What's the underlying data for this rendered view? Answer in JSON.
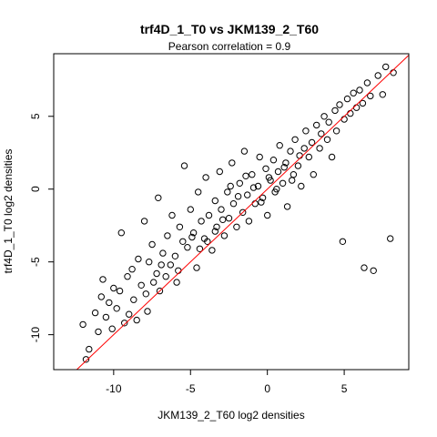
{
  "chart_data": {
    "type": "scatter",
    "title": "trf4D_1_T0 vs JKM139_2_T60",
    "subtitle": "Pearson correlation =  0.9",
    "xlabel": "JKM139_2_T60 log2 densities",
    "ylabel": "trf4D_1_T0 log2 densities",
    "xlim": [
      -13.9,
      9.2
    ],
    "ylim": [
      -12.4,
      9.3
    ],
    "xticks": [
      -10,
      -5,
      0,
      5
    ],
    "yticks": [
      -10,
      -5,
      0,
      5
    ],
    "xtick_labels": [
      "-10",
      "-5",
      "0",
      "5"
    ],
    "ytick_labels": [
      "-10",
      "-5",
      "0",
      "5"
    ],
    "grid": false,
    "legend": "none",
    "point_color": "#000000",
    "fit_line": {
      "intercept": 0,
      "slope": 1,
      "color": "#ff0000"
    },
    "points": [
      [
        -12.0,
        -9.3
      ],
      [
        -11.8,
        -11.7
      ],
      [
        -11.6,
        -11.0
      ],
      [
        -11.2,
        -8.5
      ],
      [
        -11.0,
        -9.8
      ],
      [
        -10.8,
        -7.4
      ],
      [
        -10.7,
        -6.2
      ],
      [
        -10.5,
        -8.8
      ],
      [
        -10.3,
        -7.8
      ],
      [
        -10.1,
        -9.6
      ],
      [
        -10.0,
        -6.8
      ],
      [
        -9.8,
        -8.2
      ],
      [
        -9.6,
        -7.0
      ],
      [
        -9.5,
        -3.0
      ],
      [
        -9.3,
        -9.2
      ],
      [
        -9.1,
        -6.0
      ],
      [
        -9.0,
        -8.6
      ],
      [
        -8.8,
        -5.5
      ],
      [
        -8.7,
        -7.6
      ],
      [
        -8.5,
        -9.0
      ],
      [
        -8.4,
        -4.8
      ],
      [
        -8.2,
        -6.6
      ],
      [
        -8.0,
        -2.2
      ],
      [
        -7.9,
        -7.2
      ],
      [
        -7.7,
        -5.0
      ],
      [
        -7.5,
        -3.8
      ],
      [
        -7.4,
        -6.4
      ],
      [
        -7.2,
        -5.8
      ],
      [
        -7.1,
        -0.6
      ],
      [
        -7.0,
        -7.0
      ],
      [
        -6.8,
        -4.4
      ],
      [
        -6.6,
        -6.0
      ],
      [
        -6.5,
        -3.2
      ],
      [
        -6.3,
        -5.2
      ],
      [
        -6.2,
        -1.8
      ],
      [
        -6.0,
        -4.6
      ],
      [
        -5.8,
        -5.6
      ],
      [
        -5.7,
        -2.6
      ],
      [
        -5.5,
        -3.6
      ],
      [
        -5.4,
        1.6
      ],
      [
        -5.2,
        -4.0
      ],
      [
        -5.0,
        -1.4
      ],
      [
        -4.8,
        -3.0
      ],
      [
        -4.6,
        -5.4
      ],
      [
        -4.5,
        -0.2
      ],
      [
        -4.3,
        -2.2
      ],
      [
        -4.1,
        -3.4
      ],
      [
        -4.0,
        0.8
      ],
      [
        -3.8,
        -1.8
      ],
      [
        -3.6,
        -4.2
      ],
      [
        -3.4,
        -0.8
      ],
      [
        -3.3,
        -2.6
      ],
      [
        -3.1,
        1.2
      ],
      [
        -3.0,
        -1.4
      ],
      [
        -2.8,
        -3.2
      ],
      [
        -2.6,
        -0.2
      ],
      [
        -2.5,
        -2.0
      ],
      [
        -2.3,
        1.8
      ],
      [
        -2.2,
        -1.0
      ],
      [
        -2.0,
        -2.6
      ],
      [
        -1.8,
        0.4
      ],
      [
        -1.6,
        -1.6
      ],
      [
        -1.5,
        2.6
      ],
      [
        -1.3,
        -0.4
      ],
      [
        -1.2,
        -2.2
      ],
      [
        -1.0,
        1.0
      ],
      [
        -0.8,
        -1.0
      ],
      [
        -0.6,
        0.2
      ],
      [
        -0.5,
        2.2
      ],
      [
        -0.3,
        -0.6
      ],
      [
        -0.1,
        1.4
      ],
      [
        0.0,
        -1.8
      ],
      [
        0.2,
        0.6
      ],
      [
        0.4,
        2.0
      ],
      [
        0.5,
        -0.2
      ],
      [
        0.7,
        1.2
      ],
      [
        0.8,
        3.0
      ],
      [
        1.0,
        0.4
      ],
      [
        1.2,
        1.8
      ],
      [
        1.3,
        -1.2
      ],
      [
        1.5,
        2.6
      ],
      [
        1.7,
        1.0
      ],
      [
        1.8,
        3.4
      ],
      [
        2.0,
        1.6
      ],
      [
        2.2,
        0.2
      ],
      [
        2.4,
        2.8
      ],
      [
        2.5,
        4.0
      ],
      [
        2.7,
        2.2
      ],
      [
        2.9,
        3.2
      ],
      [
        3.0,
        1.0
      ],
      [
        3.2,
        4.4
      ],
      [
        3.4,
        2.8
      ],
      [
        3.5,
        3.8
      ],
      [
        3.7,
        5.0
      ],
      [
        3.9,
        3.4
      ],
      [
        4.0,
        4.6
      ],
      [
        4.2,
        2.2
      ],
      [
        4.4,
        5.4
      ],
      [
        4.5,
        4.0
      ],
      [
        4.7,
        5.8
      ],
      [
        4.9,
        -3.6
      ],
      [
        5.0,
        4.8
      ],
      [
        5.2,
        6.2
      ],
      [
        5.4,
        5.2
      ],
      [
        5.6,
        6.6
      ],
      [
        5.8,
        5.6
      ],
      [
        6.0,
        6.8
      ],
      [
        6.2,
        5.9
      ],
      [
        6.3,
        -5.4
      ],
      [
        6.5,
        7.3
      ],
      [
        6.7,
        6.4
      ],
      [
        6.9,
        -5.6
      ],
      [
        7.2,
        7.8
      ],
      [
        7.5,
        6.5
      ],
      [
        7.7,
        8.4
      ],
      [
        8.0,
        -3.4
      ],
      [
        8.2,
        8.0
      ],
      [
        -2.4,
        0.2
      ],
      [
        -1.9,
        -0.5
      ],
      [
        -1.4,
        0.9
      ],
      [
        -0.9,
        0.1
      ],
      [
        -0.4,
        -0.9
      ],
      [
        0.1,
        0.8
      ],
      [
        0.6,
        0.0
      ],
      [
        1.1,
        1.5
      ],
      [
        1.6,
        0.6
      ],
      [
        2.1,
        2.3
      ],
      [
        -2.9,
        -2.1
      ],
      [
        -3.4,
        -2.9
      ],
      [
        -3.9,
        -3.6
      ],
      [
        -4.4,
        -4.1
      ],
      [
        -4.9,
        -3.3
      ],
      [
        -5.9,
        -6.4
      ],
      [
        -6.9,
        -5.2
      ],
      [
        -7.8,
        -8.4
      ]
    ]
  }
}
